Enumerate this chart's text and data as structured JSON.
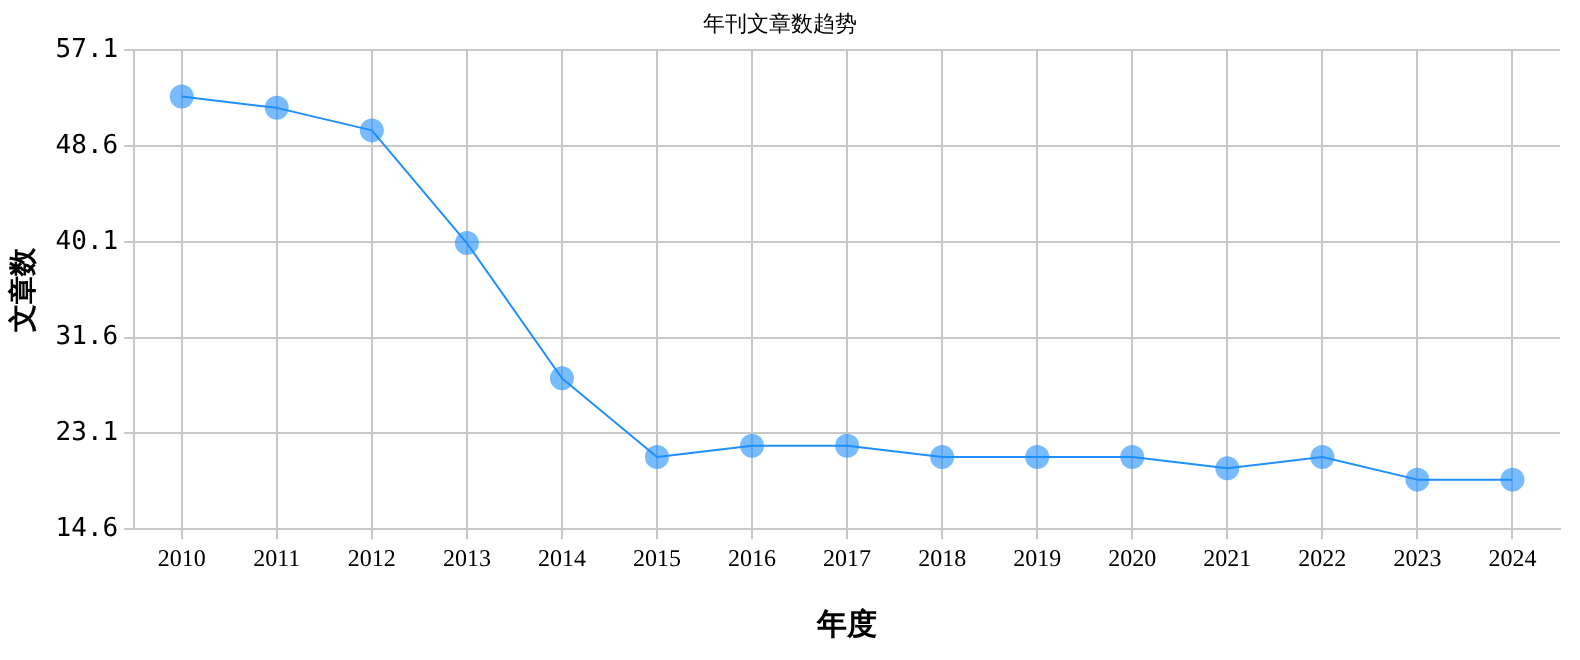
{
  "chart_data": {
    "type": "line",
    "title": "年刊文章数趋势",
    "xlabel": "年度",
    "ylabel": "文章数",
    "categories": [
      "2010",
      "2011",
      "2012",
      "2013",
      "2014",
      "2015",
      "2016",
      "2017",
      "2018",
      "2019",
      "2020",
      "2021",
      "2022",
      "2023",
      "2024"
    ],
    "series": [
      {
        "color": "#1e90ff",
        "values": [
          53,
          52,
          50,
          40,
          28,
          21,
          22,
          22,
          21,
          21,
          21,
          20,
          21,
          19,
          19
        ]
      }
    ],
    "ylim": [
      14.6,
      57.1
    ],
    "yticks": [
      14.6,
      23.1,
      31.6,
      40.1,
      48.6,
      57.1
    ],
    "grid": true,
    "legend": false,
    "marker": "circle",
    "line_style": "solid"
  }
}
